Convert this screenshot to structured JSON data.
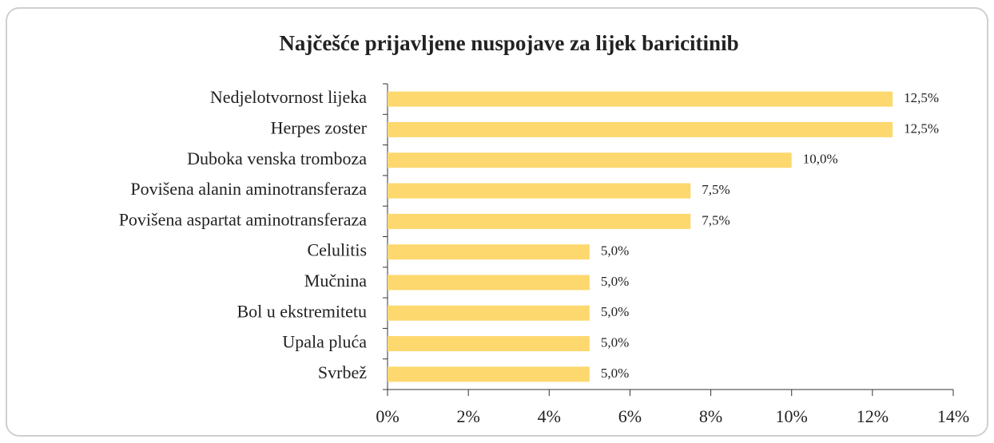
{
  "chart_data": {
    "type": "bar",
    "orientation": "horizontal",
    "title": "Najčešće prijavljene nuspojave za lijek baricitinib",
    "categories": [
      "Nedjelotvornost lijeka",
      "Herpes zoster",
      "Duboka venska tromboza",
      "Povišena alanin aminotransferaza",
      "Povišena aspartat aminotransferaza",
      "Celulitis",
      "Mučnina",
      "Bol u ekstremitetu",
      "Upala pluća",
      "Svrbež"
    ],
    "values": [
      12.5,
      12.5,
      10.0,
      7.5,
      7.5,
      5.0,
      5.0,
      5.0,
      5.0,
      5.0
    ],
    "value_labels": [
      "12,5%",
      "12,5%",
      "10,0%",
      "7,5%",
      "7,5%",
      "5,0%",
      "5,0%",
      "5,0%",
      "5,0%",
      "5,0%"
    ],
    "color": "#fdd86e",
    "xlim": [
      0,
      14
    ],
    "xticks": [
      {
        "value": 0,
        "label": "0%"
      },
      {
        "value": 2,
        "label": "2%"
      },
      {
        "value": 4,
        "label": "4%"
      },
      {
        "value": 6,
        "label": "6%"
      },
      {
        "value": 8,
        "label": "8%"
      },
      {
        "value": 10,
        "label": "10%"
      },
      {
        "value": 12,
        "label": "12%"
      },
      {
        "value": 14,
        "label": "14%"
      }
    ],
    "grid": false
  }
}
